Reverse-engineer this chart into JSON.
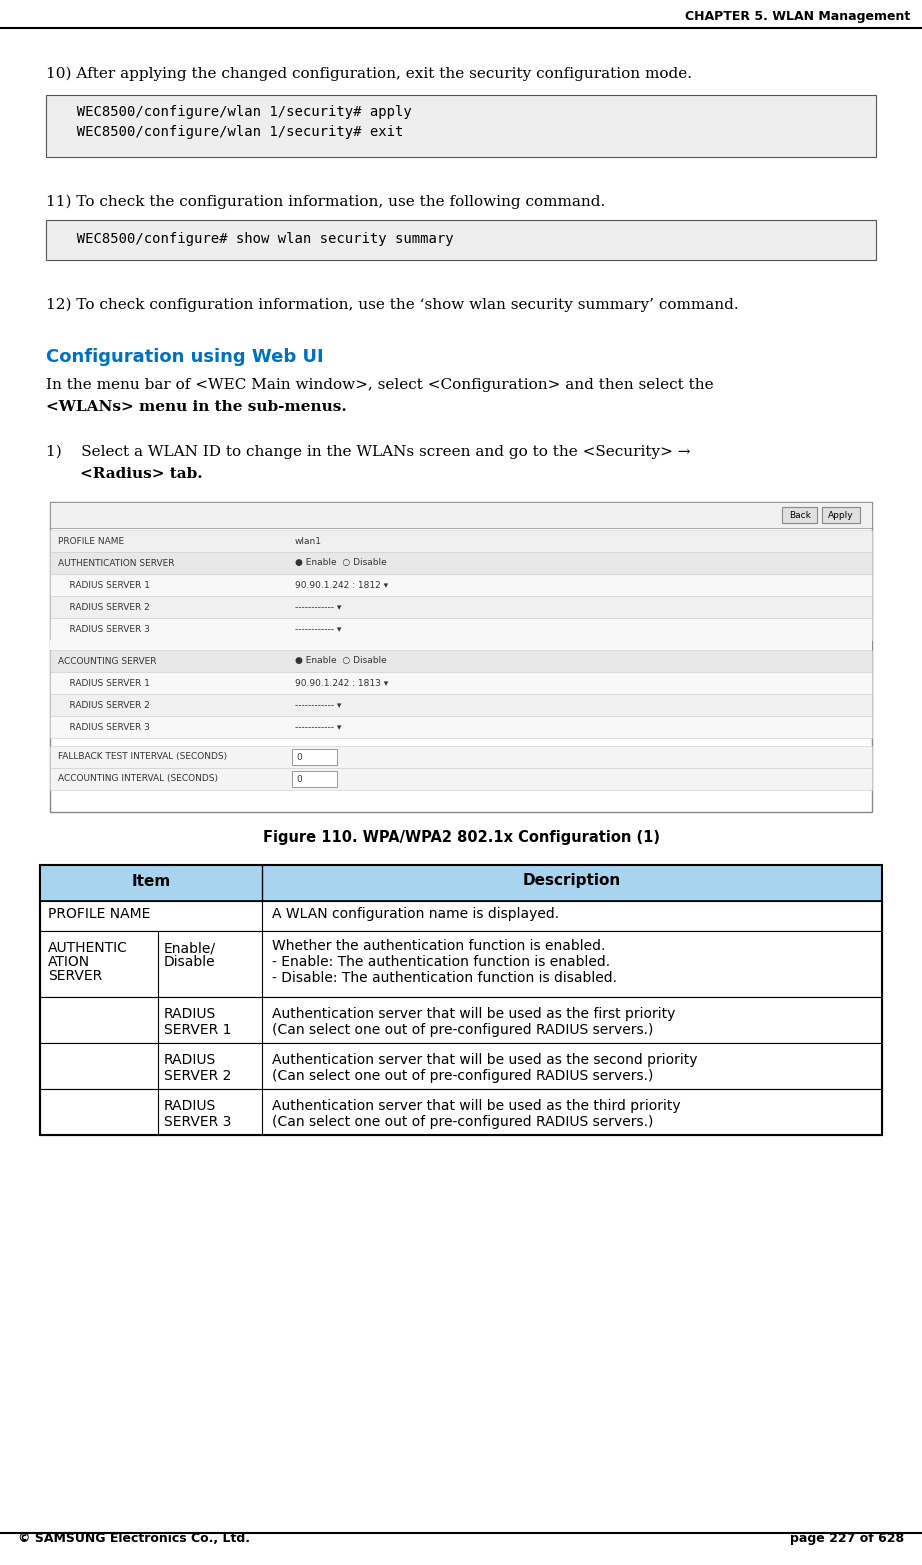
{
  "header_text": "CHAPTER 5. WLAN Management",
  "footer_left": "© SAMSUNG Electronics Co., Ltd.",
  "footer_right": "page 227 of 628",
  "para10": "10) After applying the changed configuration, exit the security configuration mode.",
  "code1_line1": "  WEC8500/configure/wlan 1/security# apply",
  "code1_line2": "  WEC8500/configure/wlan 1/security# exit",
  "para11": "11) To check the configuration information, use the following command.",
  "code2_line1": "  WEC8500/configure# show wlan security summary",
  "para12": "12) To check configuration information, use the ‘show wlan security summary’ command.",
  "config_heading": "Configuration using Web UI",
  "config_body1": "In the menu bar of <WEC Main window>, select <Configuration> and then select the",
  "config_body2": "<WLANs> menu in the sub-menus.",
  "step1_line1": "1)    Select a WLAN ID to change in the WLANs screen and go to the <Security> →",
  "step1_line2": "      <Radius> tab.",
  "figure_caption": "Figure 110. WPA/WPA2 802.1x Configuration (1)",
  "bg_color": "#ffffff",
  "code_bg": "#eeeeee",
  "table_header_bg": "#a8d4f0",
  "table_header_fg": "#000000",
  "table_row_bg_alt": "#ffffff",
  "border_color": "#000000",
  "config_heading_color": "#0070c0"
}
